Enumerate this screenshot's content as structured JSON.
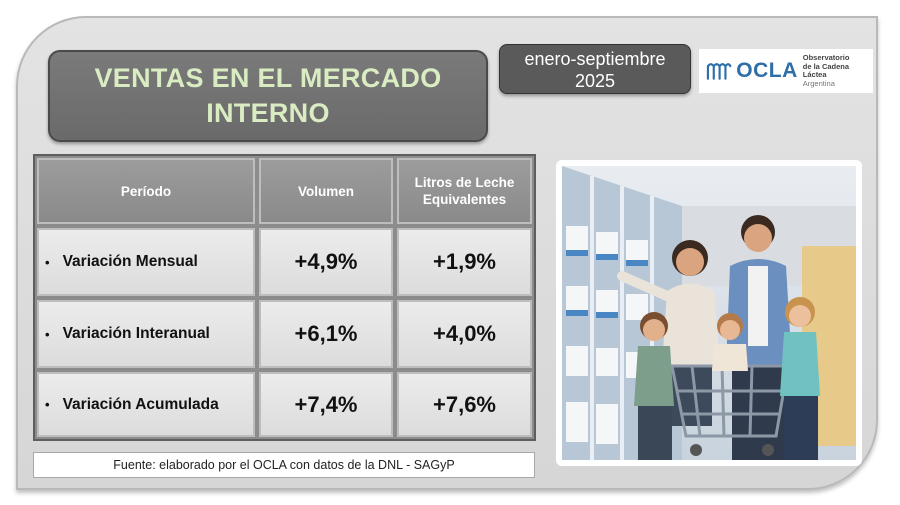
{
  "title": {
    "line1": "VENTAS EN EL MERCADO",
    "line2": "INTERNO"
  },
  "period": {
    "line1": "enero-septiembre",
    "line2": "2025"
  },
  "logo": {
    "word": "OCLA",
    "sub1": "Observatorio",
    "sub2": "de la Cadena Láctea",
    "sub3": "Argentina"
  },
  "table": {
    "headers": {
      "period": "Período",
      "volume": "Volumen",
      "liters": "Litros de Leche Equivalentes"
    },
    "rows": [
      {
        "label": "Variación Mensual",
        "volume": "+4,9%",
        "liters": "+1,9%"
      },
      {
        "label": "Variación Interanual",
        "volume": "+6,1%",
        "liters": "+4,0%"
      },
      {
        "label": "Variación Acumulada",
        "volume": "+7,4%",
        "liters": "+7,6%"
      }
    ],
    "bullet": "•"
  },
  "source": "Fuente: elaborado por el OCLA con datos de la DNL - SAGyP",
  "colors": {
    "title_text": "#d9ecc2",
    "title_bg": "#6a6a6a",
    "logo_blue": "#2f6fa8",
    "header_bg": "#8a8a8a",
    "cell_bg": "#e6e6e6"
  }
}
